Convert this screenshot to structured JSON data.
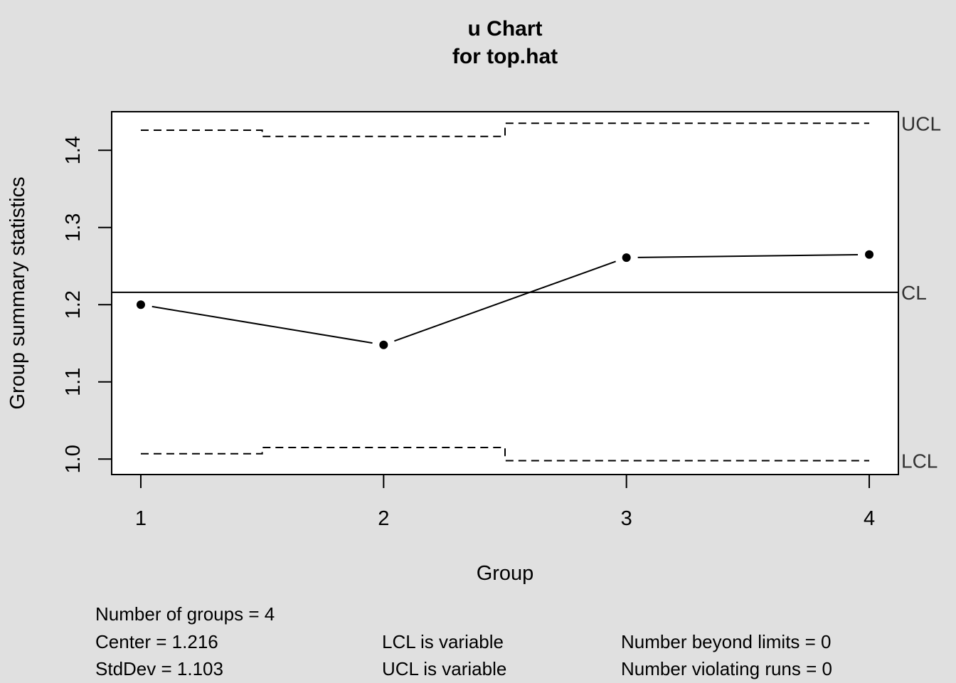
{
  "chart_data": {
    "type": "line",
    "title": "u Chart",
    "subtitle": "for top.hat",
    "xlabel": "Group",
    "ylabel": "Group summary statistics",
    "x": [
      1,
      2,
      3,
      4
    ],
    "x_tick_labels": [
      "1",
      "2",
      "3",
      "4"
    ],
    "xlim": [
      0.88,
      4.12
    ],
    "ylim": [
      0.98,
      1.45
    ],
    "y_ticks": [
      1.0,
      1.1,
      1.2,
      1.3,
      1.4
    ],
    "y_tick_labels": [
      "1.0",
      "1.1",
      "1.2",
      "1.3",
      "1.4"
    ],
    "series": [
      {
        "values": [
          1.2,
          1.148,
          1.261,
          1.265
        ]
      }
    ],
    "center_line": {
      "label": "CL",
      "value": 1.216
    },
    "ucl": {
      "label": "UCL",
      "values": [
        1.426,
        1.418,
        1.435,
        1.435
      ]
    },
    "lcl": {
      "label": "LCL",
      "values": [
        1.007,
        1.015,
        0.998,
        0.998
      ]
    },
    "grid": false,
    "colors": {
      "background": "#e0e0e0",
      "plot_background": "#ffffff",
      "line": "#000000",
      "limit_label": "#333333"
    }
  },
  "stats": {
    "number_of_groups": "Number of groups = 4",
    "center": "Center = 1.216",
    "stddev": "StdDev = 1.103",
    "lcl_note": "LCL is variable",
    "ucl_note": "UCL is variable",
    "beyond_limits": "Number beyond limits = 0",
    "violating_runs": "Number violating runs = 0"
  }
}
